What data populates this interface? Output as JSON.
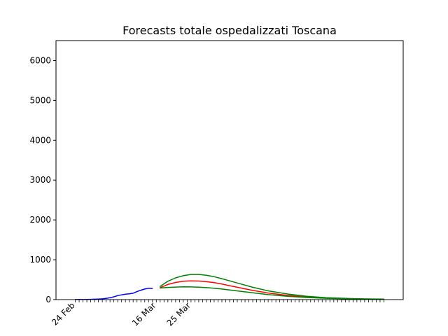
{
  "chart_data": {
    "type": "line",
    "title": "Forecasts totale ospedalizzati Toscana",
    "xlabel": "",
    "ylabel": "",
    "x_start_date": "2020-02-24",
    "x_tick_labels": [
      {
        "day": 0,
        "label": "24 Feb"
      },
      {
        "day": 21,
        "label": "16 Mar"
      },
      {
        "day": 30,
        "label": "25 Mar"
      }
    ],
    "xlim": [
      -5,
      85
    ],
    "ylim": [
      0,
      6500
    ],
    "yticks": [
      0,
      1000,
      2000,
      3000,
      4000,
      5000,
      6000
    ],
    "grid": false,
    "series": [
      {
        "color": "#0000ff",
        "x": [
          0,
          1,
          2,
          3,
          4,
          5,
          6,
          7,
          8,
          9,
          10,
          11,
          12,
          13,
          14,
          15,
          16,
          17,
          18,
          19,
          20
        ],
        "values": [
          2,
          3,
          4,
          5,
          7,
          10,
          14,
          20,
          30,
          45,
          70,
          100,
          120,
          135,
          145,
          160,
          200,
          235,
          265,
          285,
          280
        ]
      },
      {
        "color": "#ff0000",
        "x": [
          22,
          24,
          26,
          28,
          30,
          32,
          34,
          36,
          38,
          40,
          43,
          46,
          50,
          55,
          60,
          65,
          70,
          75,
          80
        ],
        "values": [
          300,
          380,
          430,
          460,
          470,
          465,
          450,
          425,
          390,
          350,
          290,
          230,
          165,
          105,
          65,
          40,
          25,
          15,
          10
        ]
      },
      {
        "color": "#008000",
        "x": [
          22,
          24,
          26,
          28,
          30,
          32,
          34,
          36,
          38,
          40,
          43,
          46,
          50,
          55,
          60,
          65,
          70,
          75,
          80
        ],
        "values": [
          330,
          460,
          545,
          600,
          630,
          630,
          610,
          575,
          525,
          470,
          390,
          310,
          220,
          140,
          85,
          50,
          30,
          18,
          12
        ]
      },
      {
        "color": "#008000",
        "x": [
          22,
          24,
          26,
          28,
          30,
          32,
          34,
          36,
          38,
          40,
          43,
          46,
          50,
          55,
          60,
          65,
          70,
          75,
          80
        ],
        "values": [
          290,
          305,
          315,
          320,
          318,
          312,
          300,
          285,
          265,
          240,
          205,
          170,
          125,
          82,
          52,
          33,
          21,
          13,
          8
        ]
      }
    ]
  }
}
